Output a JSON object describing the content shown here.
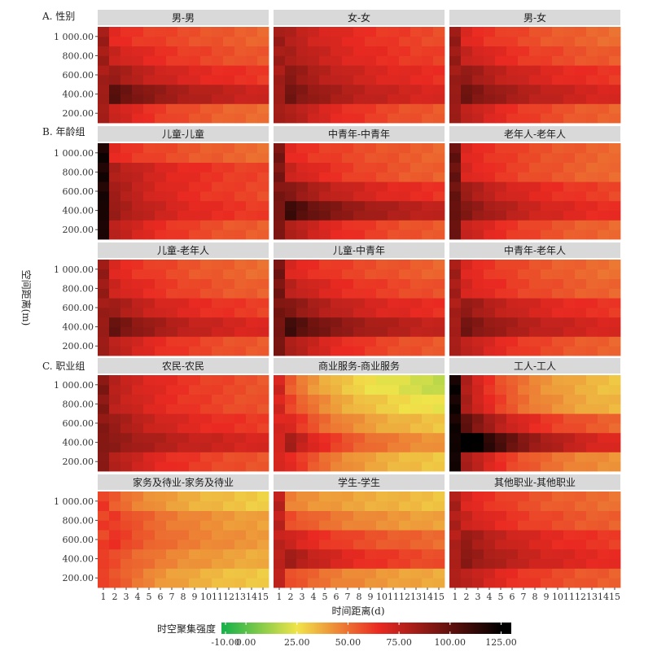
{
  "chart_data": {
    "type": "heatmap",
    "xlabel": "时间距离(d)",
    "ylabel": "空间距离(m)",
    "x_ticks": [
      "1",
      "2",
      "3",
      "4",
      "5",
      "6",
      "7",
      "8",
      "9",
      "10",
      "11",
      "12",
      "13",
      "14",
      "15"
    ],
    "y_ticks": [
      "200.00",
      "400.00",
      "600.00",
      "800.00",
      "1 000.00"
    ],
    "legend": {
      "title": "时空聚集强度",
      "ticks": [
        "-10.00",
        "0.00",
        "25.00",
        "50.00",
        "75.00",
        "100.00",
        "125.00"
      ],
      "tick_values": [
        -10,
        0,
        25,
        50,
        75,
        100,
        125
      ],
      "range": [
        -12,
        130
      ],
      "colors": [
        "#1db34a",
        "#f0e44a",
        "#ea2a22",
        "#000000"
      ]
    },
    "groups": [
      {
        "label": "A. 性别",
        "panels": [
          {
            "title": "男-男",
            "profile": {
              "a": 85,
              "b": [
                57,
                79,
                69,
                62,
                60
              ],
              "c": [
                17,
                24,
                16,
                12,
                6
              ]
            }
          },
          {
            "title": "女-女",
            "profile": {
              "a": 85,
              "b": [
                61,
                76,
                71,
                67,
                65
              ],
              "c": [
                20,
                20,
                18,
                15,
                14
              ]
            }
          },
          {
            "title": "男-女",
            "profile": {
              "a": 87,
              "b": [
                59,
                76,
                69,
                61,
                58
              ],
              "c": [
                18,
                21,
                18,
                14,
                10
              ]
            }
          }
        ]
      },
      {
        "label": "B. 年龄组",
        "panels": [
          {
            "title": "儿童-儿童",
            "profile": {
              "a": 120,
              "b": [
                60,
                68,
                65,
                66,
                58
              ],
              "c": [
                18,
                18,
                18,
                15,
                8
              ]
            }
          },
          {
            "title": "中青年-中青年",
            "profile": {
              "a": 95,
              "b": [
                61,
                82,
                70,
                60,
                60
              ],
              "c": [
                20,
                28,
                20,
                14,
                6
              ]
            }
          },
          {
            "title": "老年人-老年人",
            "profile": {
              "a": 100,
              "b": [
                58,
                71,
                66,
                58,
                59
              ],
              "c": [
                17,
                21,
                18,
                12,
                9
              ]
            }
          }
        ]
      },
      {
        "label": "",
        "panels": [
          {
            "title": "儿童-老年人",
            "profile": {
              "a": 87,
              "b": [
                61,
                75,
                67,
                60,
                58
              ],
              "c": [
                17,
                24,
                17,
                13,
                10
              ]
            }
          },
          {
            "title": "儿童-中青年",
            "profile": {
              "a": 96,
              "b": [
                61,
                81,
                71,
                63,
                60
              ],
              "c": [
                21,
                28,
                20,
                15,
                9
              ]
            }
          },
          {
            "title": "中青年-老年人",
            "profile": {
              "a": 84,
              "b": [
                59,
                76,
                69,
                59,
                57
              ],
              "c": [
                18,
                20,
                18,
                12,
                11
              ]
            }
          }
        ]
      },
      {
        "label": "C. 职业组",
        "panels": [
          {
            "title": "农民-农民",
            "profile": {
              "a": 92,
              "b": [
                62,
                77,
                68,
                63,
                63
              ],
              "c": [
                18,
                12,
                17,
                15,
                15
              ]
            }
          },
          {
            "title": "商业服务-商业服务",
            "profile": {
              "a": 72,
              "b": [
                37,
                48,
                38,
                30,
                24
              ],
              "c": [
                30,
                35,
                30,
                30,
                30
              ]
            }
          },
          {
            "title": "工人-工人",
            "profile": {
              "a": 122,
              "b": [
                48,
                72,
                58,
                40,
                38
              ],
              "c": [
                35,
                68,
                42,
                42,
                42
              ]
            }
          }
        ]
      },
      {
        "label": "",
        "panels": [
          {
            "title": "家务及待业-家务及待业",
            "profile": {
              "a": 62,
              "b": [
                37,
                44,
                48,
                46,
                37
              ],
              "c": [
                20,
                14,
                15,
                16,
                17
              ]
            }
          },
          {
            "title": "学生-学生",
            "profile": {
              "a": 78,
              "b": [
                44,
                64,
                58,
                46,
                40
              ],
              "c": [
                14,
                20,
                14,
                12,
                6
              ]
            }
          },
          {
            "title": "其他职业-其他职业",
            "profile": {
              "a": 82,
              "b": [
                60,
                72,
                68,
                60,
                57
              ],
              "c": [
                18,
                18,
                18,
                14,
                12
              ]
            }
          }
        ]
      }
    ]
  }
}
